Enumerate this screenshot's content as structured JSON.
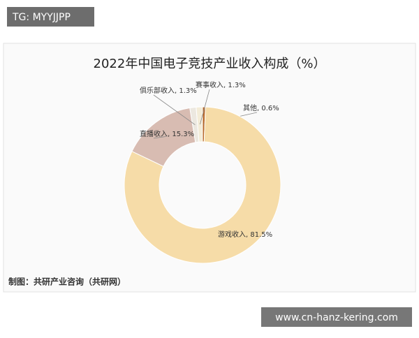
{
  "overlay_top": "TG: MYYJJPP",
  "overlay_bottom": "www.cn-hanz-kering.com",
  "chart_data": {
    "type": "donut",
    "title": "2022年中国电子竞技产业收入构成（%）",
    "source": "制图：共研产业咨询（共研网）",
    "values": [
      0.6,
      81.5,
      15.3,
      1.3,
      1.3
    ],
    "value_labels": [
      "其他, 0.6%",
      "游戏收入, 81.5%",
      "直播收入, 15.3%",
      "俱乐部收入, 1.3%",
      "赛事收入, 1.3%"
    ],
    "colors": [
      "#b8692a",
      "#f6dca8",
      "#d8bcb2",
      "#ece8e0",
      "#f3ecd8"
    ]
  }
}
